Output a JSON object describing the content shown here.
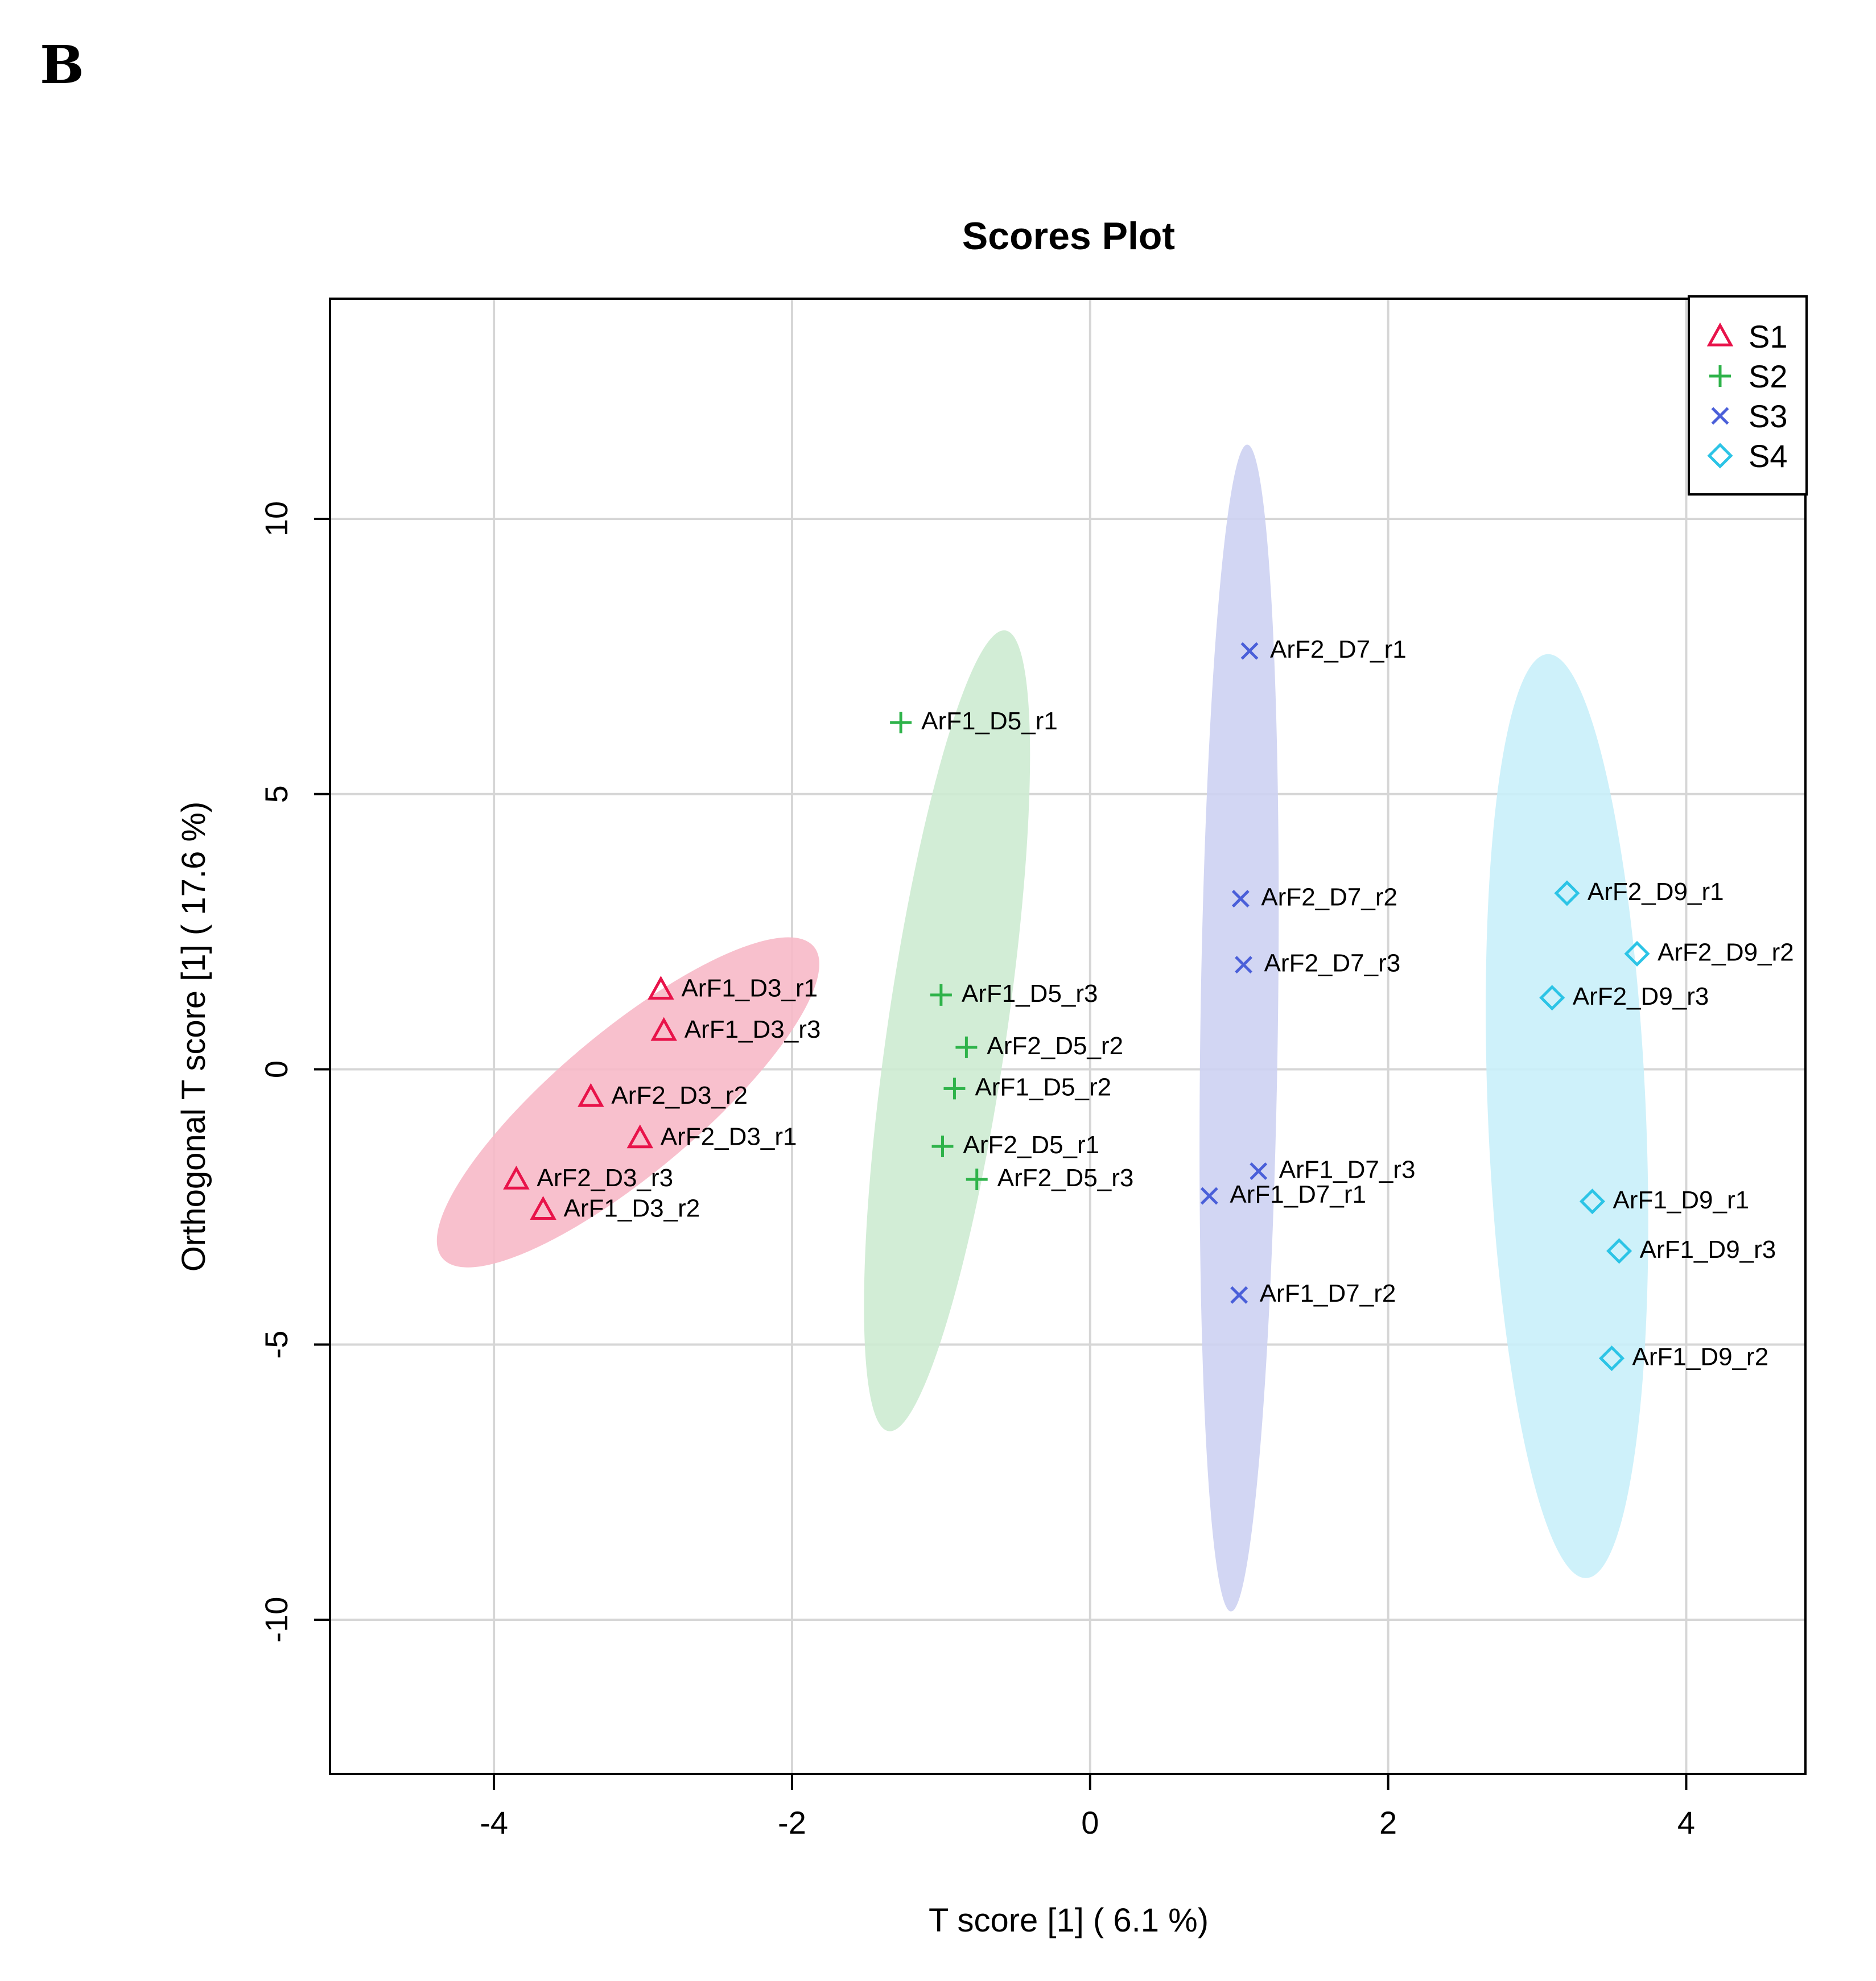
{
  "panel_letter": "B",
  "chart_data": {
    "type": "scatter",
    "title": "Scores Plot",
    "xlabel": "T score [1] ( 6.1 %)",
    "ylabel": "Orthogonal T score [1] ( 17.6 %)",
    "xlim": [
      -5.1,
      4.8
    ],
    "ylim": [
      -12.8,
      14.0
    ],
    "xticks": [
      -4,
      -2,
      0,
      2,
      4
    ],
    "yticks": [
      -10,
      -5,
      0,
      5,
      10
    ],
    "grid": true,
    "legend_position": "top-right",
    "series": [
      {
        "name": "S1",
        "marker": "triangle",
        "color": "#E8134A",
        "fill": "#F7B9C8",
        "ellipse": {
          "cx": -3.1,
          "cy": -0.6,
          "rx": 2.4,
          "ry": 0.75,
          "angle_deg": 48
        },
        "points": [
          {
            "label": "ArF1_D3_r1",
            "x": -2.88,
            "y": 1.45
          },
          {
            "label": "ArF1_D3_r3",
            "x": -2.86,
            "y": 0.7
          },
          {
            "label": "ArF2_D3_r2",
            "x": -3.35,
            "y": -0.5
          },
          {
            "label": "ArF2_D3_r1",
            "x": -3.02,
            "y": -1.25
          },
          {
            "label": "ArF2_D3_r3",
            "x": -3.85,
            "y": -2.0
          },
          {
            "label": "ArF1_D3_r2",
            "x": -3.67,
            "y": -2.55
          }
        ]
      },
      {
        "name": "S2",
        "marker": "plus",
        "color": "#2EB34A",
        "fill": "#CDEBD2",
        "ellipse": {
          "cx": -0.96,
          "cy": 0.7,
          "rx": 0.4,
          "ry": 7.35,
          "angle_deg": 8.3
        },
        "points": [
          {
            "label": "ArF1_D5_r1",
            "x": -1.27,
            "y": 6.3
          },
          {
            "label": "ArF1_D5_r3",
            "x": -1.0,
            "y": 1.35
          },
          {
            "label": "ArF2_D5_r2",
            "x": -0.83,
            "y": 0.4
          },
          {
            "label": "ArF1_D5_r2",
            "x": -0.91,
            "y": -0.35
          },
          {
            "label": "ArF2_D5_r1",
            "x": -0.99,
            "y": -1.4
          },
          {
            "label": "ArF2_D5_r3",
            "x": -0.76,
            "y": -2.0
          }
        ]
      },
      {
        "name": "S3",
        "marker": "cross",
        "color": "#4A5FD9",
        "fill": "#CDD1F2",
        "ellipse": {
          "cx": 1.0,
          "cy": 0.75,
          "rx": 0.26,
          "ry": 10.6,
          "angle_deg": 0.8
        },
        "points": [
          {
            "label": "ArF2_D7_r1",
            "x": 1.07,
            "y": 7.6
          },
          {
            "label": "ArF2_D7_r2",
            "x": 1.01,
            "y": 3.1
          },
          {
            "label": "ArF2_D7_r3",
            "x": 1.03,
            "y": 1.9
          },
          {
            "label": "ArF1_D7_r3",
            "x": 1.13,
            "y": -1.85
          },
          {
            "label": "ArF1_D7_r1",
            "x": 0.8,
            "y": -2.3
          },
          {
            "label": "ArF1_D7_r2",
            "x": 1.0,
            "y": -4.1
          }
        ]
      },
      {
        "name": "S4",
        "marker": "diamond",
        "color": "#2CC4E6",
        "fill": "#C9F0FA",
        "ellipse": {
          "cx": 3.2,
          "cy": -0.85,
          "rx": 0.53,
          "ry": 8.4,
          "angle_deg": -2.4
        },
        "points": [
          {
            "label": "ArF2_D9_r1",
            "x": 3.2,
            "y": 3.2
          },
          {
            "label": "ArF2_D9_r2",
            "x": 3.67,
            "y": 2.1
          },
          {
            "label": "ArF2_D9_r3",
            "x": 3.1,
            "y": 1.3
          },
          {
            "label": "ArF1_D9_r1",
            "x": 3.37,
            "y": -2.4
          },
          {
            "label": "ArF1_D9_r3",
            "x": 3.55,
            "y": -3.3
          },
          {
            "label": "ArF1_D9_r2",
            "x": 3.5,
            "y": -5.25
          }
        ]
      }
    ]
  }
}
